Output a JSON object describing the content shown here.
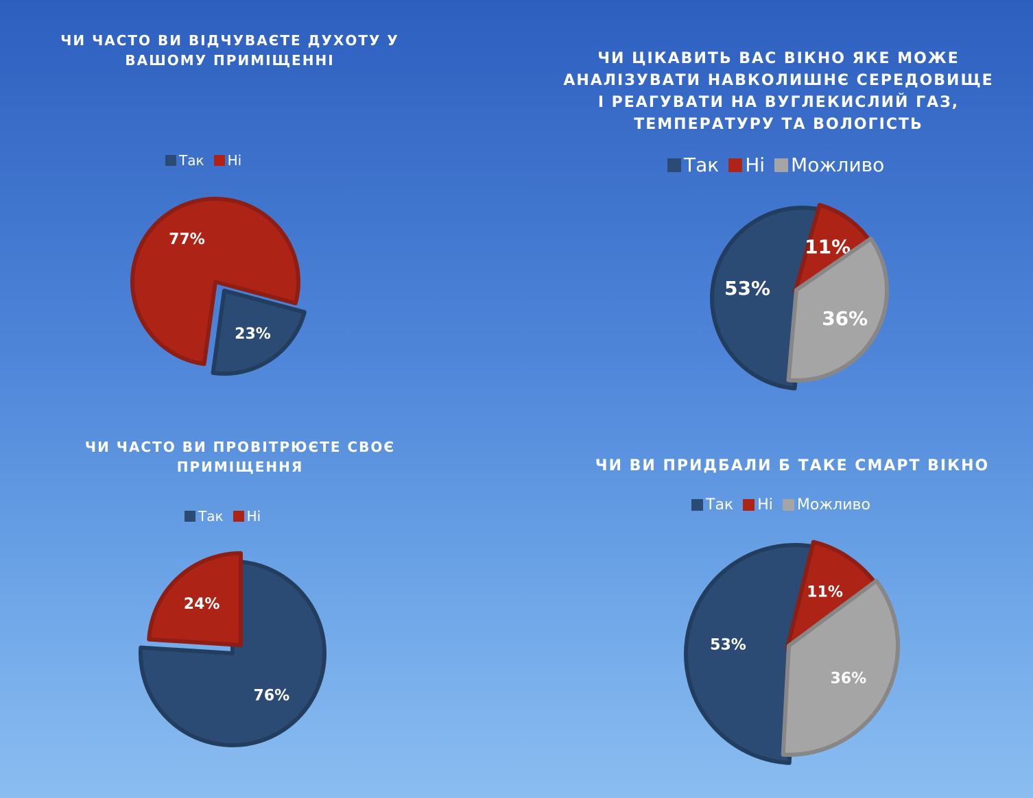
{
  "chart_data": [
    {
      "type": "pie",
      "title": "ЧИ ЧАСТО ВИ ВІДЧУВАЄТЕ ДУХОТУ У ВАШОМУ ПРИМІЩЕННІ",
      "categories": [
        "Так",
        "Ні"
      ],
      "values": [
        23,
        77
      ],
      "labels": [
        "23%",
        "77%"
      ],
      "colors": [
        "#2b4b74",
        "#ad2417"
      ],
      "legend_position": "top"
    },
    {
      "type": "pie",
      "title": "ЧИ ЦІКАВИТЬ ВАС ВІКНО ЯКЕ МОЖЕ АНАЛІЗУВАТИ НАВКОЛИШНЄ СЕРЕДОВИЩЕ І РЕАГУВАТИ НА ВУГЛЕКИСЛИЙ ГАЗ, ТЕМПЕРАТУРУ ТА ВОЛОГІСТЬ",
      "categories": [
        "Так",
        "Ні",
        "Можливо"
      ],
      "values": [
        53,
        11,
        36
      ],
      "labels": [
        "53%",
        "11%",
        "36%"
      ],
      "colors": [
        "#2b4b74",
        "#ad2417",
        "#a5a5a5"
      ],
      "legend_position": "top"
    },
    {
      "type": "pie",
      "title": "ЧИ ЧАСТО ВИ ПРОВІТРЮЄТЕ СВОЄ ПРИМІЩЕННЯ",
      "categories": [
        "Так",
        "Ні"
      ],
      "values": [
        76,
        24
      ],
      "labels": [
        "76%",
        "24%"
      ],
      "colors": [
        "#2b4b74",
        "#ad2417"
      ],
      "legend_position": "top"
    },
    {
      "type": "pie",
      "title": "ЧИ ВИ ПРИДБАЛИ Б ТАКЕ СМАРТ ВІКНО",
      "categories": [
        "Так",
        "Ні",
        "Можливо"
      ],
      "values": [
        53,
        11,
        36
      ],
      "labels": [
        "53%",
        "11%",
        "36%"
      ],
      "colors": [
        "#2b4b74",
        "#ad2417",
        "#a5a5a5"
      ],
      "legend_position": "top"
    }
  ]
}
